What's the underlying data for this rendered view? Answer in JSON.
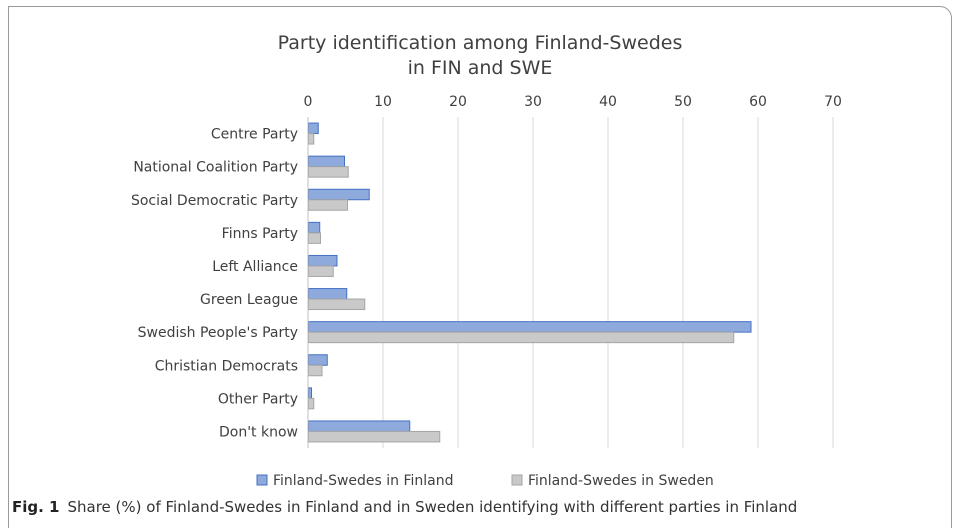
{
  "chart_data": {
    "type": "bar",
    "orientation": "horizontal",
    "title": "Party identification among Finland-Swedes",
    "subtitle": "in FIN and SWE",
    "categories": [
      "Centre Party",
      "National Coalition Party",
      "Social Democratic Party",
      "Finns Party",
      "Left Alliance",
      "Green League",
      "Swedish People's Party",
      "Christian Democrats",
      "Other Party",
      "Don't know"
    ],
    "series": [
      {
        "name": "Finland-Swedes in Finland",
        "color": "#8EA9DB",
        "border": "#4472C4",
        "values": [
          1.3,
          4.8,
          8.1,
          1.5,
          3.8,
          5.1,
          59.0,
          2.5,
          0.4,
          13.5
        ]
      },
      {
        "name": "Finland-Swedes in Sweden",
        "color": "#C9C9C9",
        "border": "#A5A5A5",
        "values": [
          0.7,
          5.3,
          5.2,
          1.6,
          3.3,
          7.5,
          56.7,
          1.8,
          0.7,
          17.5
        ]
      }
    ],
    "xlim": [
      0,
      70
    ],
    "xticks": [
      "0",
      "10",
      "20",
      "30",
      "40",
      "50",
      "60",
      "70"
    ],
    "grid": true,
    "legend_position": "bottom"
  },
  "caption": {
    "label": "Fig. 1",
    "text": "Share (%) of Finland-Swedes in Finland and in Sweden identifying with different parties in Finland"
  }
}
